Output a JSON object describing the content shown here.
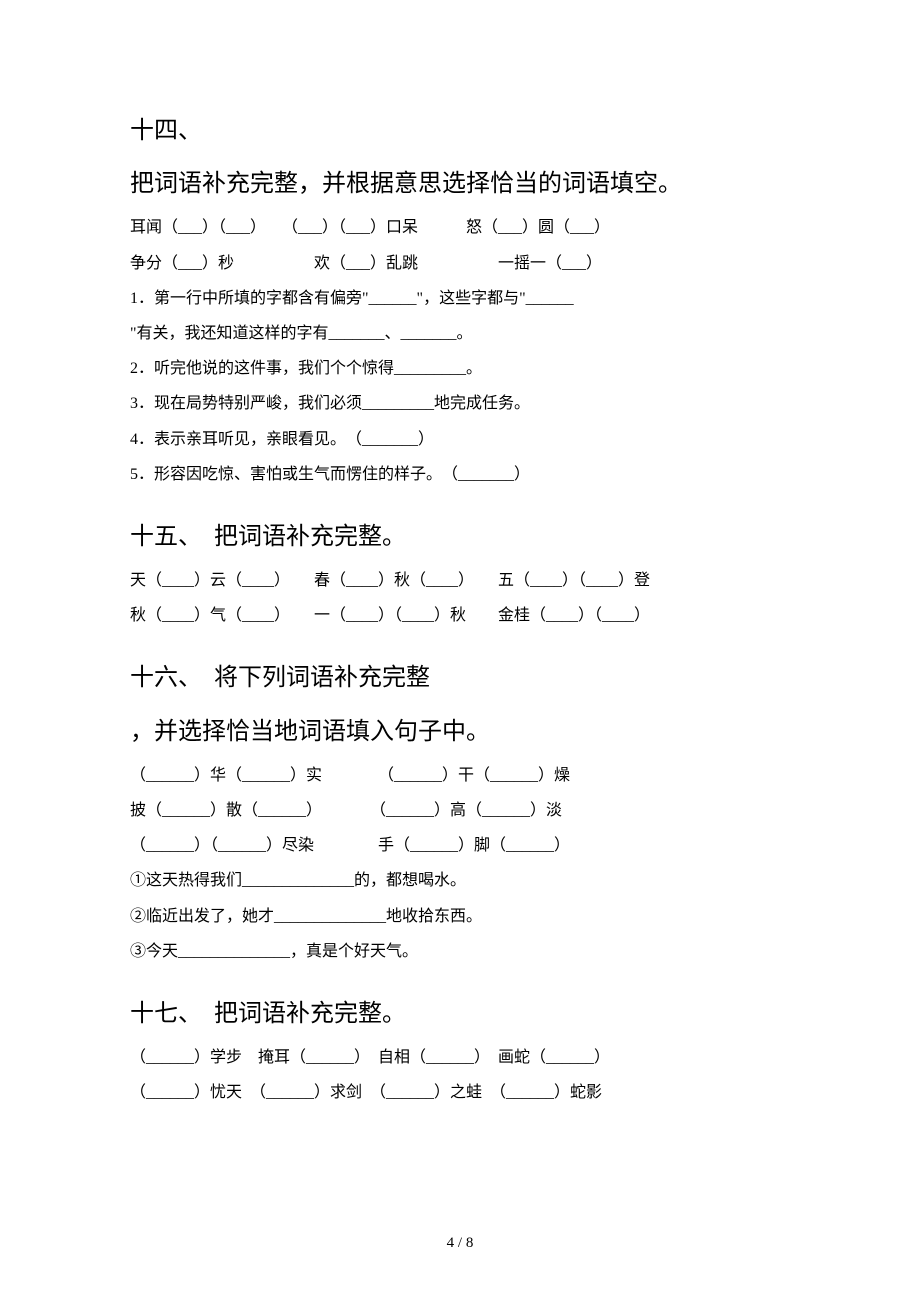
{
  "section14": {
    "num": "十四、",
    "title": "把词语补充完整，并根据意思选择恰当的词语填空。",
    "lines": [
      "耳闻（___）（___）　　（___）（___）口呆　　　怒（___）圆（___）",
      "争分（___）秒　　　　　欢（___）乱跳　　　　　一摇一（___）",
      "1．第一行中所填的字都含有偏旁\"______\"，这些字都与\"______",
      "\"有关，我还知道这样的字有_______、_______。",
      "2．听完他说的这件事，我们个个惊得_________。",
      "3．现在局势特别严峻，我们必须_________地完成任务。",
      "4．表示亲耳听见，亲眼看见。　（_______）",
      "5．形容因吃惊、害怕或生气而愣住的样子。　（_______）"
    ]
  },
  "section15": {
    "title": "十五、　把词语补充完整。",
    "lines": [
      "天（____）云（____）　　春（____）秋（____）　　五（____）（____）登",
      "秋（____）气（____）　　一（____）（____）秋　　金桂（____）（____）"
    ]
  },
  "section16": {
    "num": "十六、　将下列词语补充完整",
    "title2": "，并选择恰当地词语填入句子中。",
    "lines": [
      "（______）华（______）实　　　　（______）干（______）燥",
      "披（______）散（______）　　　　（______）高（______）淡",
      "（______）（______）尽染　　　　手（______）脚（______）",
      "①这天热得我们______________的，都想喝水。",
      "②临近出发了，她才______________地收拾东西。",
      "③今天______________，真是个好天气。"
    ]
  },
  "section17": {
    "title": "十七、　把词语补充完整。",
    "lines": [
      "（______）学步　掩耳（______）　自相（______）　画蛇（______）",
      "（______）忧天　（______）求剑　（______）之蛙　（______）蛇影"
    ]
  },
  "footer": "4 / 8"
}
